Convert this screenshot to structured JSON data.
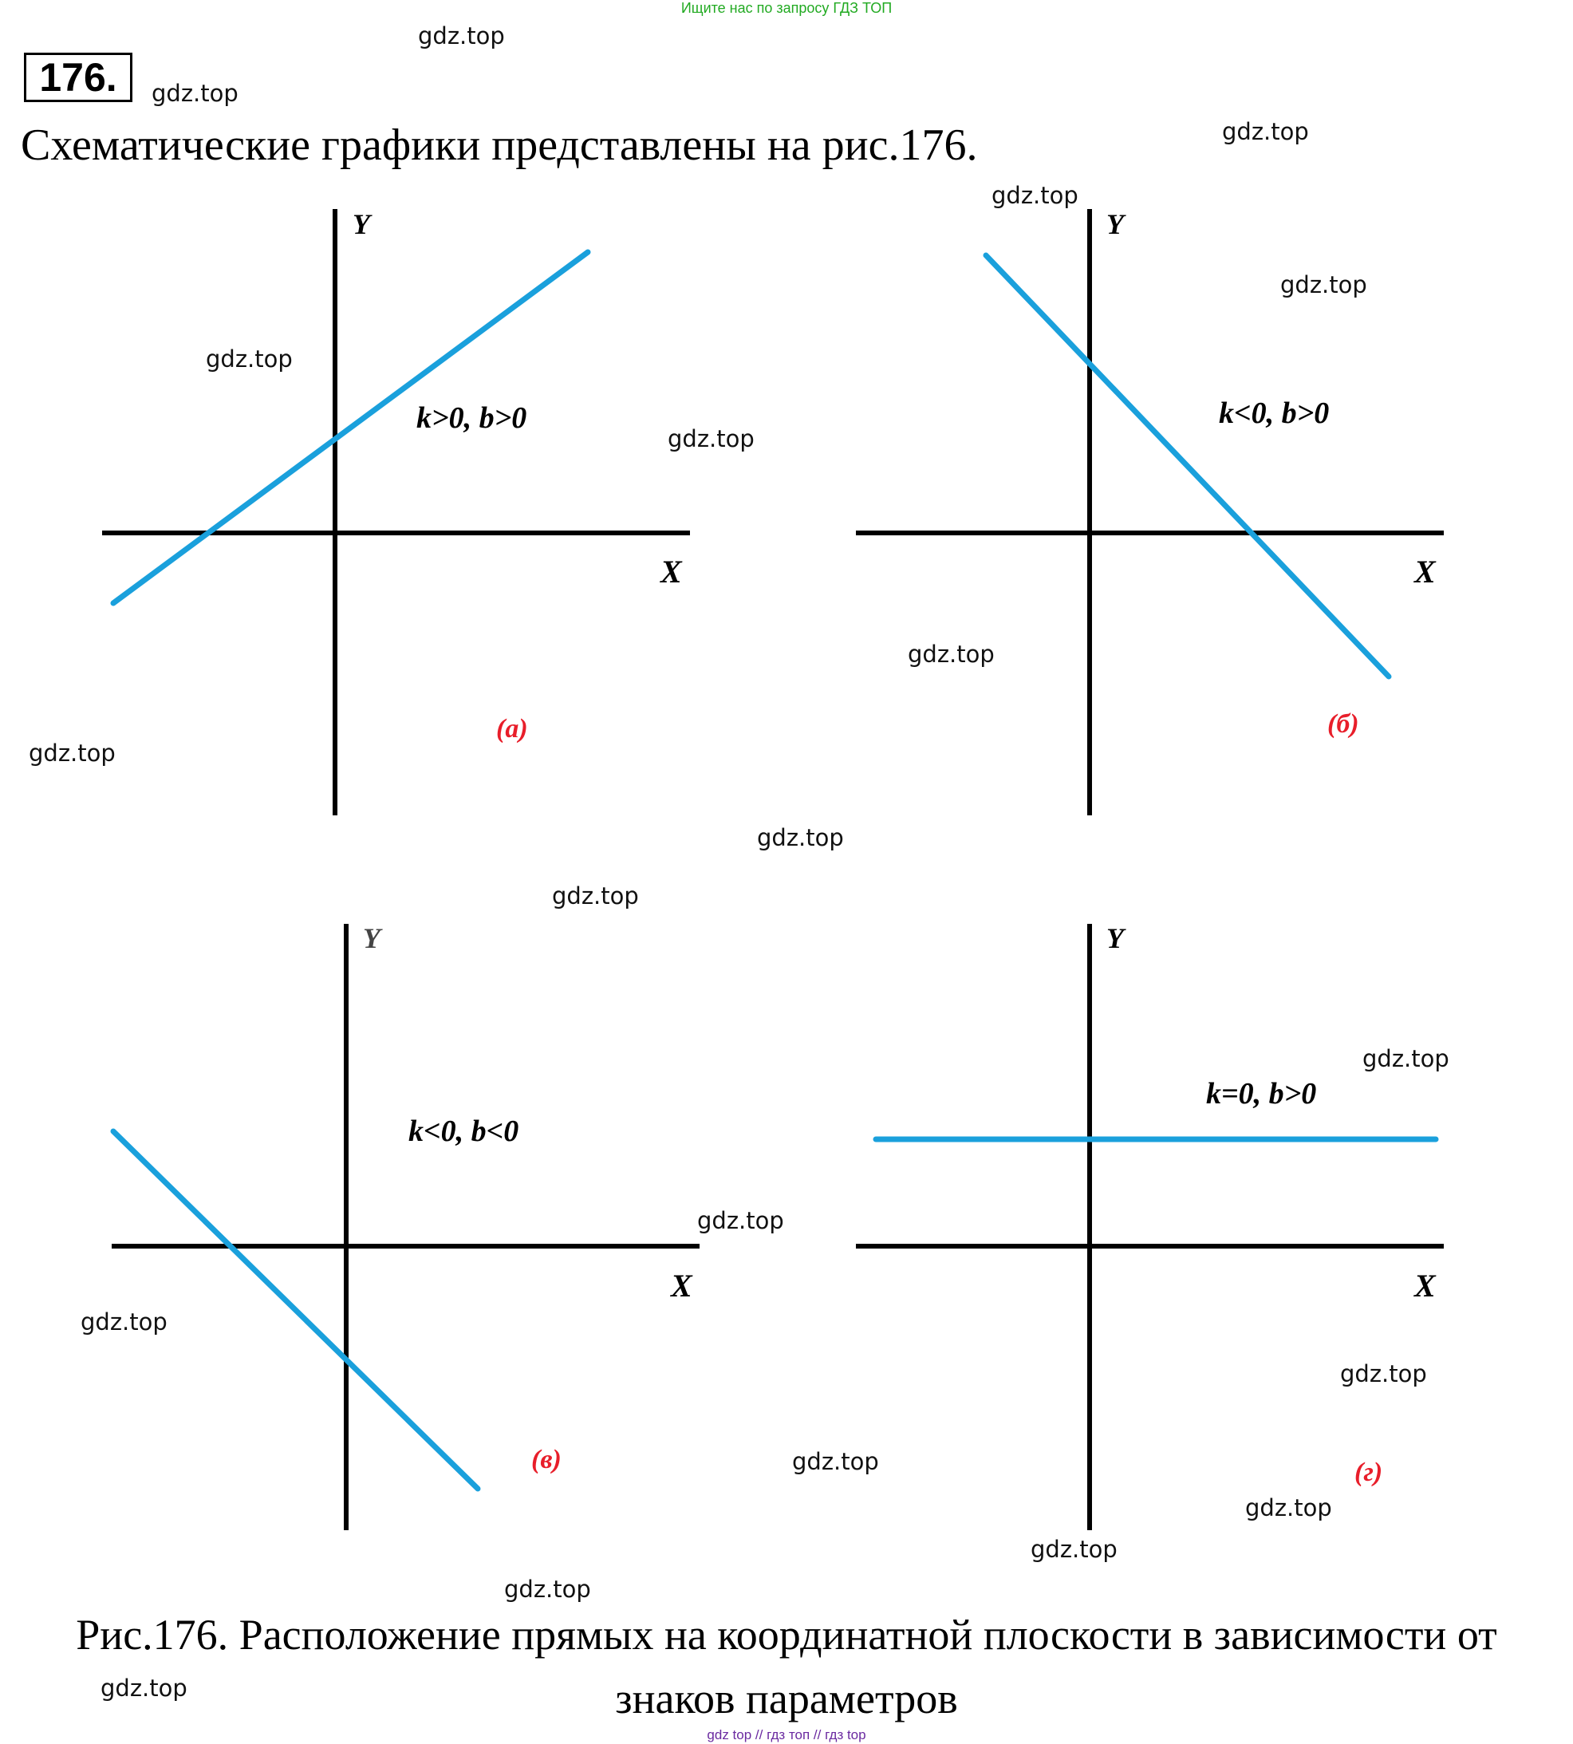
{
  "header": {
    "search_hint": "Ищите нас по запросу ГДЗ ТОП",
    "task_number": "176."
  },
  "intro_text": "Схематические графики представлены на рис.176.",
  "graphs": [
    {
      "id": "a",
      "condition": "k>0, b>0",
      "panel_label": "(а)",
      "x_axis": "X",
      "y_axis": "Y",
      "line_color": "#1aa0dc",
      "label_color": "#e81e2a"
    },
    {
      "id": "b",
      "condition": "k<0, b>0",
      "panel_label": "(б)",
      "x_axis": "X",
      "y_axis": "Y",
      "line_color": "#1aa0dc",
      "label_color": "#e81e2a"
    },
    {
      "id": "v",
      "condition": "k<0, b<0",
      "panel_label": "(в)",
      "x_axis": "X",
      "y_axis": "Y",
      "line_color": "#1aa0dc",
      "label_color": "#e81e2a"
    },
    {
      "id": "g",
      "condition": "k=0, b>0",
      "panel_label": "(г)",
      "x_axis": "X",
      "y_axis": "Y",
      "line_color": "#1aa0dc",
      "label_color": "#e81e2a"
    }
  ],
  "caption": {
    "line1": "Рис.176. Расположение прямых на координатной плоскости в зависимости от",
    "line2": "знаков параметров"
  },
  "watermark_text": "gdz.top",
  "footer_links": "gdz top  //  гдз топ  //  гдз top"
}
